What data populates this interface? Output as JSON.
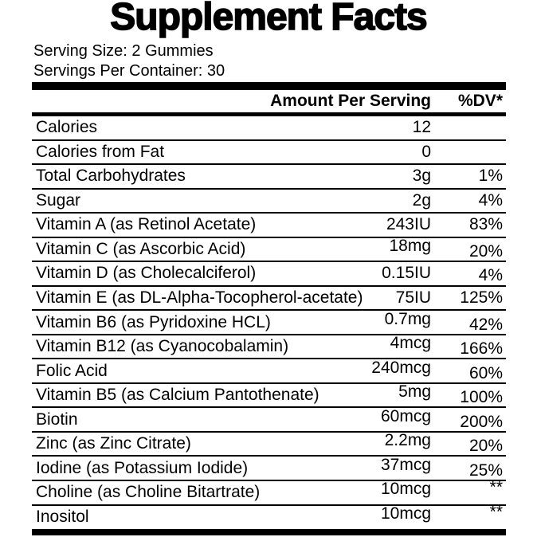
{
  "title": "Supplement Facts",
  "serving": {
    "size_line": "Serving Size: 2 Gummies",
    "per_container_line": "Servings Per Container: 30"
  },
  "table": {
    "amount_header": "Amount Per Serving",
    "dv_header": "%DV*",
    "rows": [
      {
        "name": "Calories",
        "amount": "12",
        "dv": ""
      },
      {
        "name": "Calories from Fat",
        "amount": "0",
        "dv": ""
      },
      {
        "name": "Total Carbohydrates",
        "amount": "3g",
        "dv": "1%"
      },
      {
        "name": "Sugar",
        "amount": "2g",
        "dv": "4%"
      },
      {
        "name": "Vitamin A (as Retinol Acetate)",
        "amount": "243IU",
        "dv": "83%"
      },
      {
        "name": "Vitamin C (as Ascorbic Acid)",
        "amount": "18mg",
        "dv": "20%"
      },
      {
        "name": "Vitamin D (as Cholecalciferol)",
        "amount": "0.15IU",
        "dv": "4%"
      },
      {
        "name": "Vitamin E (as DL-Alpha-Tocopherol-acetate)",
        "amount": "75IU",
        "dv": "125%"
      },
      {
        "name": "Vitamin B6 (as Pyridoxine HCL)",
        "amount": "0.7mg",
        "dv": "42%"
      },
      {
        "name": "Vitamin B12 (as Cyanocobalamin)",
        "amount": "4mcg",
        "dv": "166%"
      },
      {
        "name": "Folic Acid",
        "amount": "240mcg",
        "dv": "60%"
      },
      {
        "name": "Vitamin B5 (as Calcium Pantothenate)",
        "amount": "5mg",
        "dv": "100%"
      },
      {
        "name": "Biotin",
        "amount": "60mcg",
        "dv": "200%"
      },
      {
        "name": "Zinc (as Zinc Citrate)",
        "amount": "2.2mg",
        "dv": "20%"
      },
      {
        "name": "Iodine (as Potassium Iodide)",
        "amount": "37mcg",
        "dv": "25%"
      },
      {
        "name": "Choline (as Choline Bitartrate)",
        "amount": "10mcg",
        "dv": "**"
      },
      {
        "name": "Inositol",
        "amount": "10mcg",
        "dv": "**"
      }
    ]
  },
  "colors": {
    "text": "#000000",
    "background": "#ffffff"
  }
}
